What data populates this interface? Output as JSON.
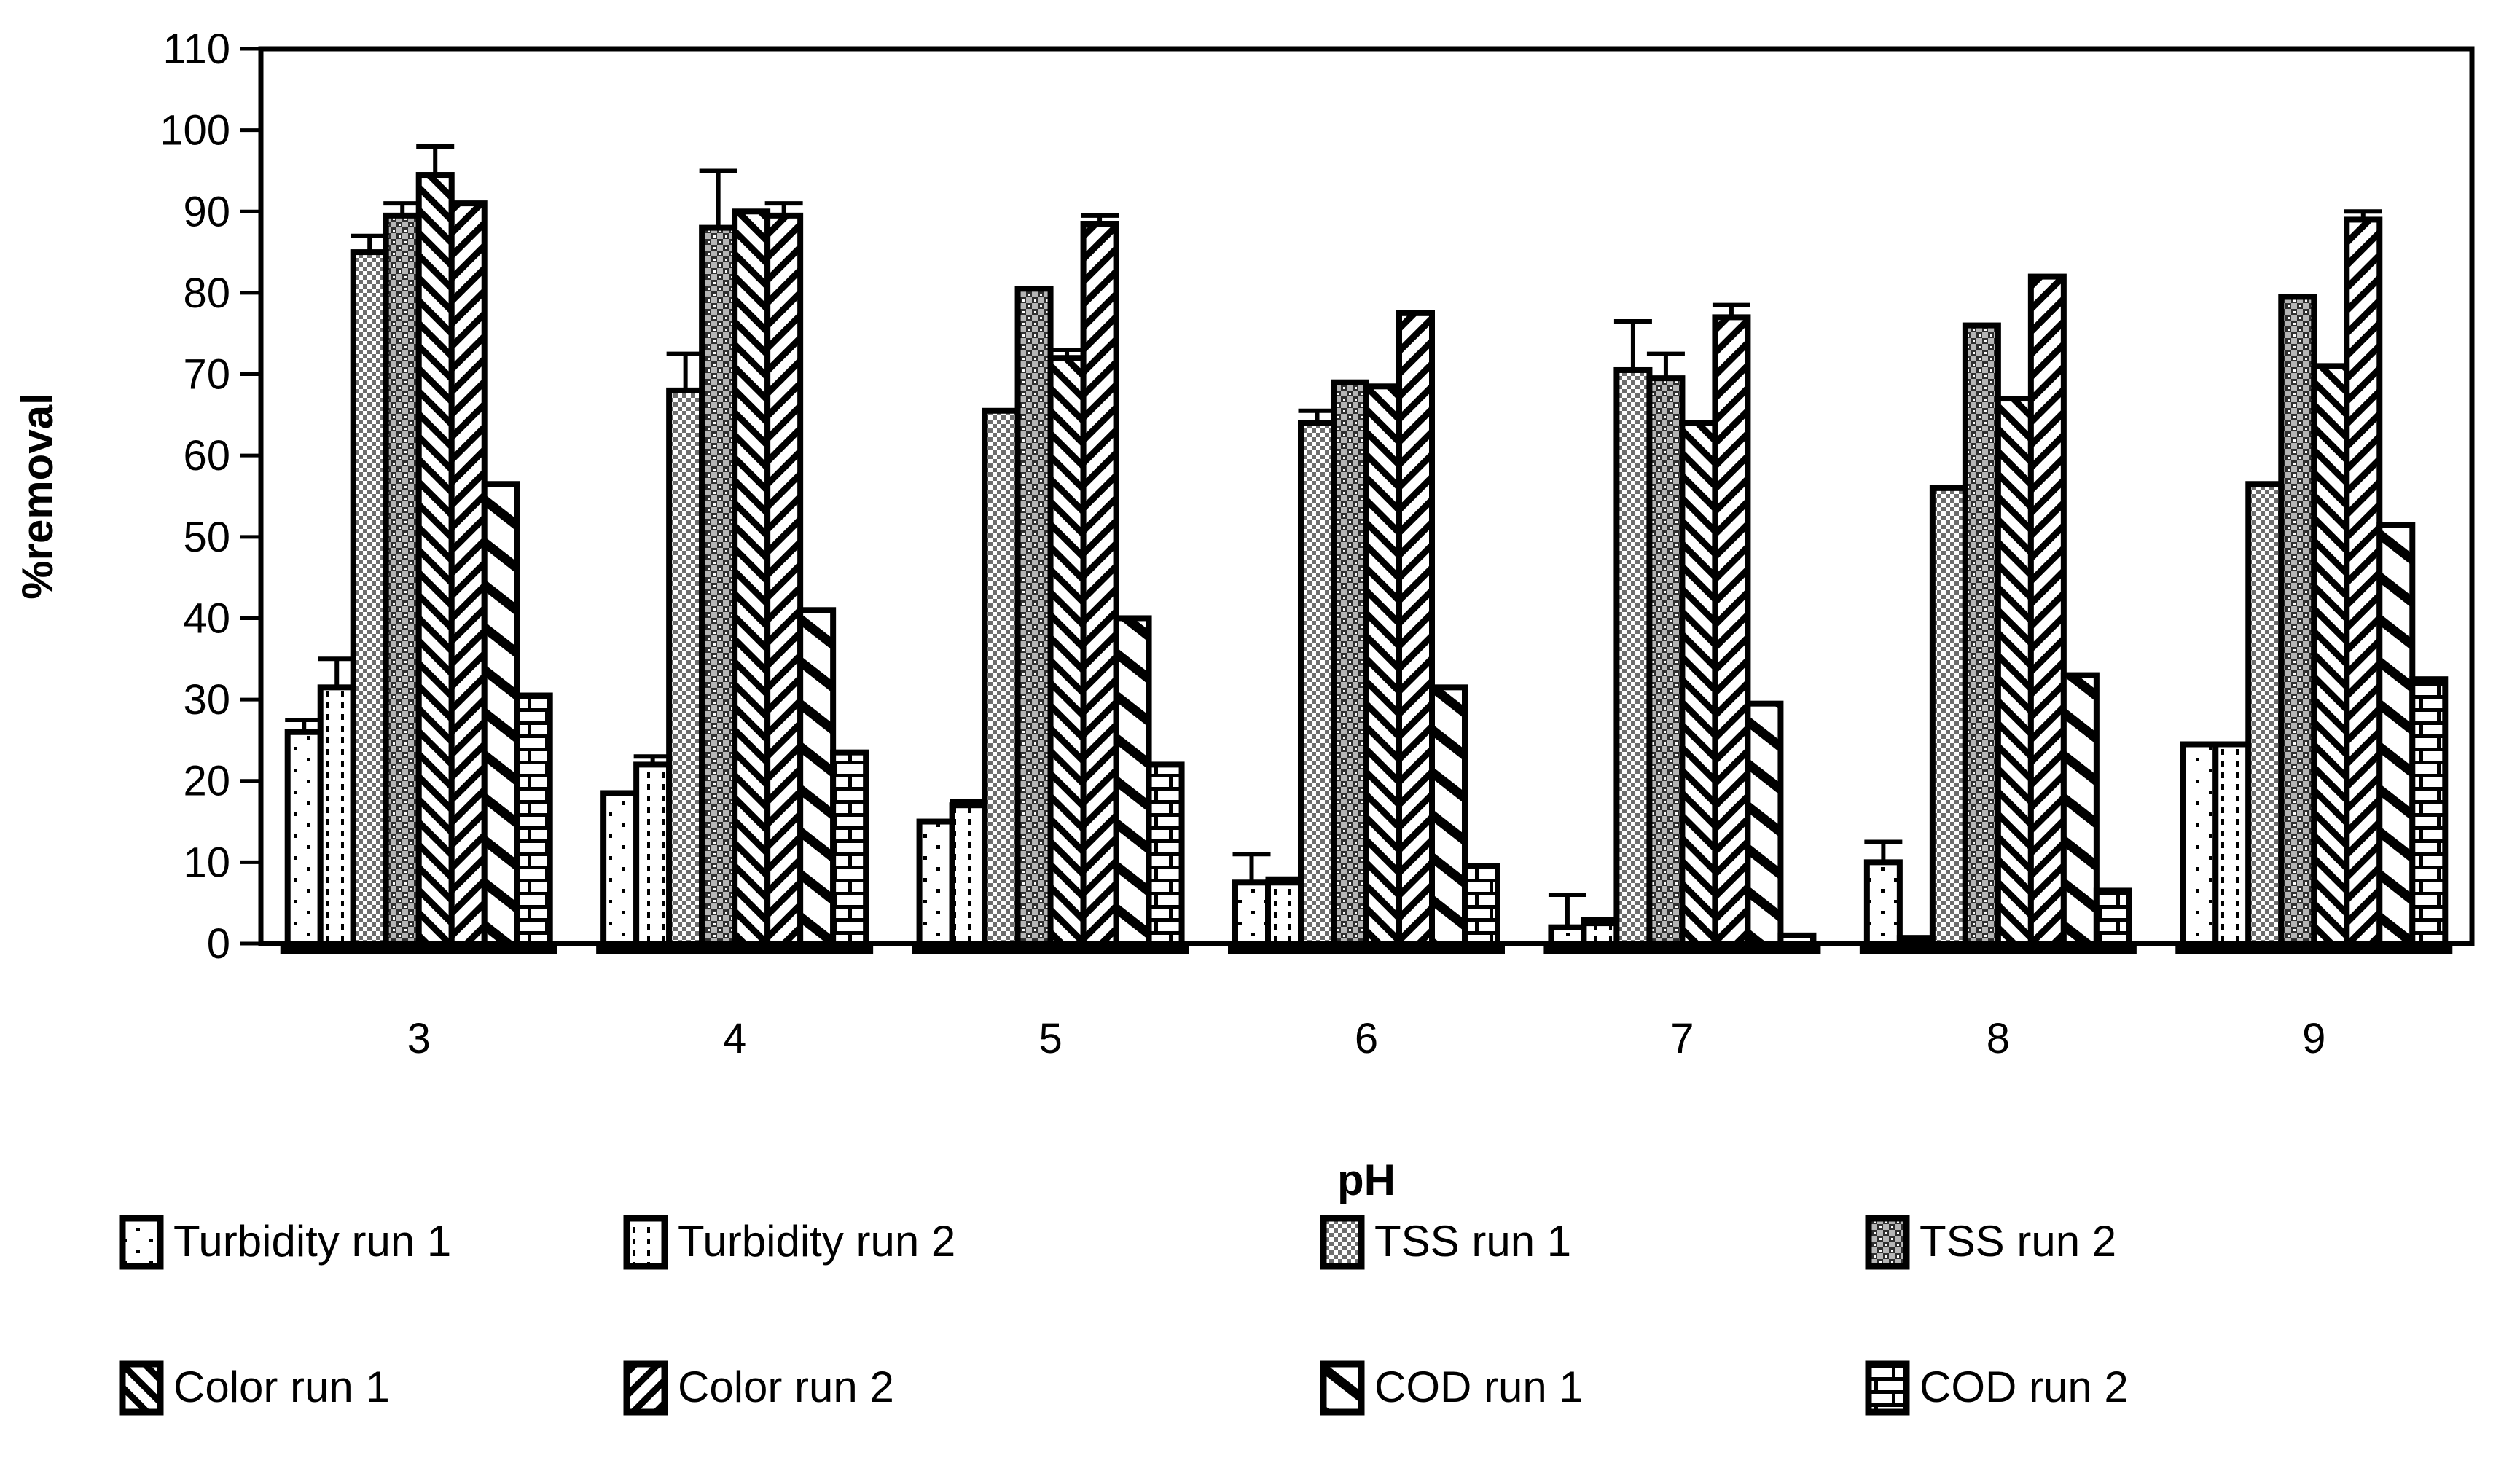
{
  "page": {
    "background": "#ffffff",
    "foreground": "#000000"
  },
  "chart_data": {
    "type": "bar",
    "title": "",
    "categories": [
      "3",
      "4",
      "5",
      "6",
      "7",
      "8",
      "9"
    ],
    "xlabel": "pH",
    "ylabel": "%removal",
    "ylim": [
      0,
      110
    ],
    "ytick_step": 10,
    "grid": false,
    "legend_position": "bottom",
    "bar_outline_color": "#000000",
    "series": [
      {
        "name": "Turbidity run 1",
        "pattern": "dots-sparse",
        "values": [
          26,
          18.5,
          15,
          7.5,
          2,
          10,
          24.5
        ],
        "errors": [
          1.5,
          0,
          0,
          3.5,
          4,
          2.5,
          0
        ]
      },
      {
        "name": "Turbidity run 2",
        "pattern": "dots-dense",
        "values": [
          31.5,
          22,
          17,
          7.5,
          2.5,
          0.7,
          24.5
        ],
        "errors": [
          3.5,
          1,
          0.5,
          0.5,
          0.5,
          0,
          0
        ]
      },
      {
        "name": "TSS run 1",
        "pattern": "checker-fine",
        "values": [
          85,
          68,
          65.5,
          64,
          70.5,
          56,
          56.5
        ],
        "errors": [
          2,
          4.5,
          0,
          1.5,
          6,
          0,
          0
        ]
      },
      {
        "name": "TSS run 2",
        "pattern": "checker-coarse",
        "values": [
          89.5,
          88,
          80.5,
          69,
          69.5,
          76,
          79.5
        ],
        "errors": [
          1.5,
          7,
          0,
          0,
          3,
          0,
          0
        ]
      },
      {
        "name": "Color run 1",
        "pattern": "hatch-back",
        "values": [
          94.5,
          90,
          72,
          68.5,
          64,
          67,
          71
        ],
        "errors": [
          3.5,
          0,
          1,
          0,
          0,
          0,
          0
        ]
      },
      {
        "name": "Color run 2",
        "pattern": "hatch-fwd",
        "values": [
          91,
          89.5,
          88.5,
          77.5,
          77,
          82,
          89
        ],
        "errors": [
          0,
          1.5,
          1,
          0,
          1.5,
          0,
          1
        ]
      },
      {
        "name": "COD run 1",
        "pattern": "diag-wide",
        "values": [
          56.5,
          41,
          40,
          31.5,
          29.5,
          33,
          51.5
        ],
        "errors": [
          0,
          0,
          0,
          0,
          0,
          0,
          0
        ]
      },
      {
        "name": "COD run 2",
        "pattern": "brick",
        "values": [
          30.5,
          23.5,
          22,
          9.5,
          1,
          6.5,
          32.5
        ],
        "errors": [
          0,
          0,
          0,
          0,
          0,
          0,
          0
        ]
      }
    ]
  }
}
